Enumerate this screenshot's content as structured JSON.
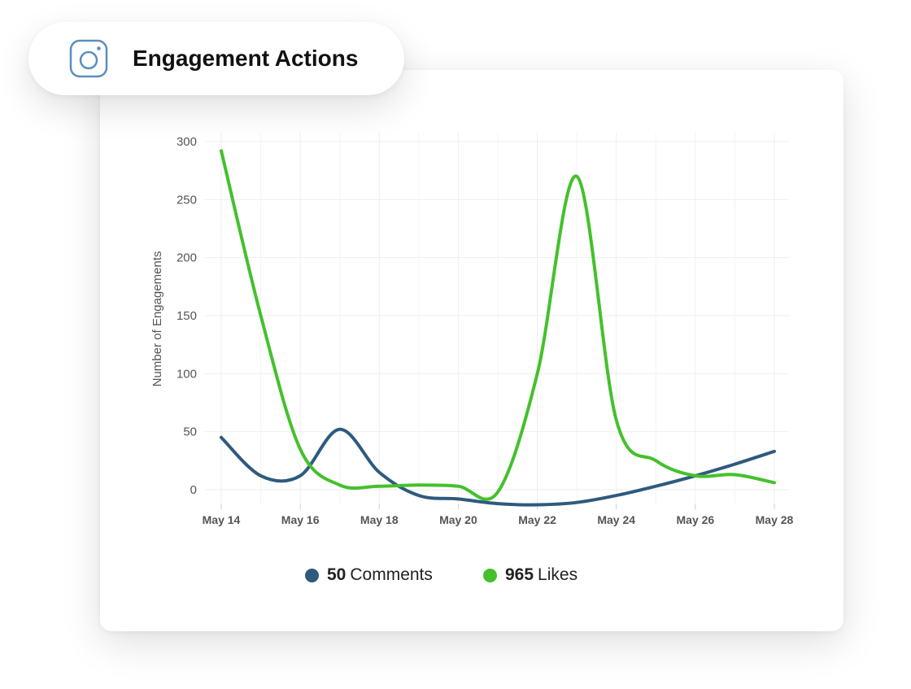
{
  "title": "Engagement Actions",
  "icon": "instagram-icon",
  "colors": {
    "comments": "#2e5a7e",
    "likes": "#44c12c",
    "grid": "#eeeeee",
    "axis_text": "#555555",
    "icon": "#5b8fbe"
  },
  "legend": [
    {
      "count": "50",
      "label": "Comments"
    },
    {
      "count": "965",
      "label": "Likes"
    }
  ],
  "chart_data": {
    "type": "line",
    "title": "",
    "xlabel": "",
    "ylabel": "Number of Engagements",
    "ylim": [
      0,
      300
    ],
    "yticks": [
      0,
      50,
      100,
      150,
      200,
      250,
      300
    ],
    "xtick_labels": [
      "May 14",
      "May 16",
      "May 18",
      "May 20",
      "May 22",
      "May 24",
      "May 26",
      "May 28"
    ],
    "x": [
      "May 14",
      "May 15",
      "May 16",
      "May 17",
      "May 18",
      "May 19",
      "May 20",
      "May 21",
      "May 22",
      "May 23",
      "May 24",
      "May 25",
      "May 26",
      "May 27",
      "May 28"
    ],
    "series": [
      {
        "name": "Comments",
        "values": [
          45,
          12,
          12,
          52,
          15,
          -5,
          -8,
          -12,
          -13,
          -11,
          -5,
          3,
          12,
          22,
          33
        ]
      },
      {
        "name": "Likes",
        "values": [
          292,
          150,
          35,
          4,
          3,
          4,
          3,
          -2,
          100,
          270,
          60,
          25,
          12,
          13,
          6
        ]
      }
    ],
    "grid": true,
    "legend_position": "bottom"
  }
}
